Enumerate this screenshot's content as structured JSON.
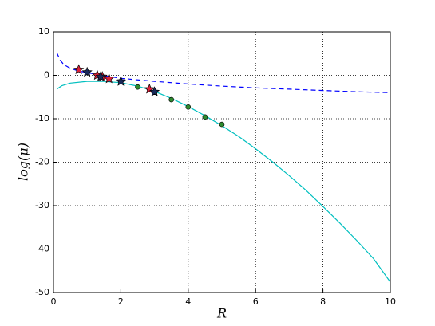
{
  "chart_data": {
    "type": "line",
    "x_label": "R",
    "y_label": "log(μ)",
    "xlim": [
      0,
      10
    ],
    "ylim": [
      -50,
      10
    ],
    "xticks": [
      0,
      2,
      4,
      6,
      8,
      10
    ],
    "yticks": [
      10,
      0,
      -10,
      -20,
      -30,
      -40,
      -50
    ],
    "grid": true,
    "series": [
      {
        "style": "dashed",
        "color": "#0000ff",
        "x": [
          0.1,
          0.2,
          0.3,
          0.5,
          0.75,
          1,
          1.5,
          2,
          3,
          4,
          5,
          6,
          7,
          8,
          9,
          10
        ],
        "values": [
          5.2,
          3.5,
          2.5,
          1.6,
          1.0,
          0.6,
          -0.1,
          -0.7,
          -1.4,
          -2.0,
          -2.5,
          -2.9,
          -3.2,
          -3.5,
          -3.8,
          -4.0
        ]
      },
      {
        "style": "solid",
        "color": "#00bfbf",
        "x": [
          0.1,
          0.25,
          0.5,
          1,
          1.5,
          2,
          2.5,
          3,
          3.5,
          4,
          4.5,
          5,
          5.5,
          6,
          6.5,
          7,
          7.5,
          8,
          8.5,
          9,
          9.5,
          10
        ],
        "values": [
          -3.2,
          -2.4,
          -1.8,
          -1.4,
          -1.4,
          -1.7,
          -2.5,
          -3.7,
          -5.3,
          -7.2,
          -9.3,
          -11.6,
          -14.1,
          -16.9,
          -19.9,
          -23.1,
          -26.5,
          -30.2,
          -34.0,
          -38.0,
          -42.2,
          -47.6
        ]
      },
      {
        "style": "dots",
        "color": "#2e8b2e",
        "x": [
          2,
          2.5,
          3,
          3.5,
          4,
          4.5,
          5
        ],
        "values": [
          -1.4,
          -2.7,
          -3.9,
          -5.6,
          -7.3,
          -9.6,
          -11.3
        ]
      },
      {
        "style": "stars",
        "color": "#e0203a",
        "x": [
          0.75,
          1.3,
          1.45,
          1.65,
          2.85
        ],
        "values": [
          1.3,
          0,
          -0.3,
          -0.8,
          -3.2
        ]
      },
      {
        "style": "stars",
        "color": "#1a2a5a",
        "x": [
          1.0,
          1.4,
          2.0,
          3.0
        ],
        "values": [
          0.7,
          -0.3,
          -1.4,
          -3.8
        ]
      }
    ]
  }
}
